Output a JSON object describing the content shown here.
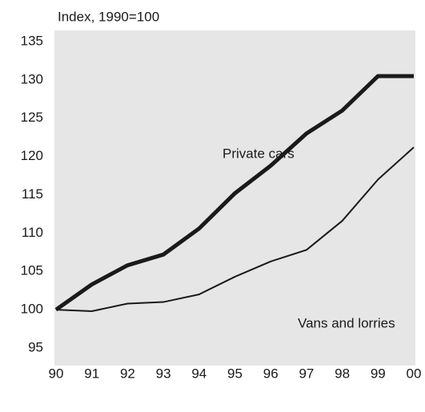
{
  "chart_data": {
    "type": "line",
    "y_label": "Index, 1990=100",
    "categories": [
      "90",
      "91",
      "92",
      "93",
      "94",
      "95",
      "96",
      "97",
      "98",
      "99",
      "00"
    ],
    "series": [
      {
        "name": "Private cars",
        "color": "#1a1a1a",
        "values": [
          100,
          103.3,
          105.8,
          107.2,
          110.6,
          115.2,
          118.8,
          123,
          126,
          130.5,
          130.5
        ]
      },
      {
        "name": "Vans and lorries",
        "color": "#1a1a1a",
        "values": [
          100,
          99.8,
          100.8,
          101,
          102,
          104.3,
          106.3,
          107.8,
          111.6,
          117,
          121.2
        ]
      }
    ],
    "ylim": [
      95,
      135
    ],
    "yticks": [
      95,
      100,
      105,
      110,
      115,
      120,
      125,
      130,
      135
    ],
    "grid": false
  }
}
